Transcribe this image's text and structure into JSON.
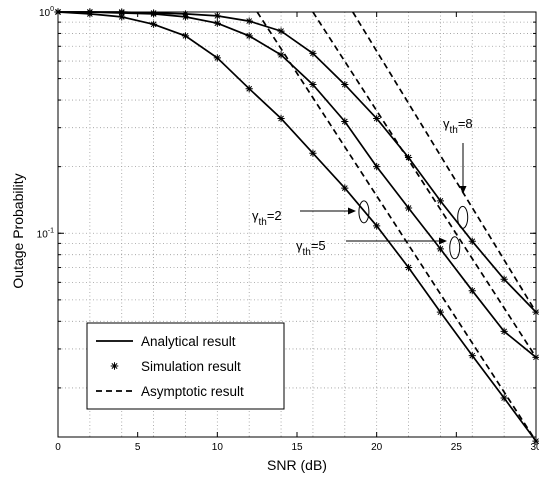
{
  "chart_data": {
    "type": "line",
    "title": "",
    "xlabel": "SNR (dB)",
    "ylabel": "Outage Probability",
    "xlim": [
      0,
      30
    ],
    "ylim": [
      0.012,
      1
    ],
    "yscale": "log",
    "grid": true,
    "legend_position": "bottom-left",
    "x_ticks": [
      0,
      5,
      10,
      15,
      20,
      25,
      30
    ],
    "y_ticks": [
      {
        "value": 1,
        "base": "10",
        "exp": "0"
      },
      {
        "value": 0.1,
        "base": "10",
        "exp": "-1"
      }
    ],
    "legend": [
      {
        "label": "Analytical result",
        "style": "solid"
      },
      {
        "label": "Simulation result",
        "style": "marker"
      },
      {
        "label": "Asymptotic result",
        "style": "dashed"
      }
    ],
    "series": [
      {
        "group": "γth=2",
        "analytical": {
          "x": [
            0,
            2,
            4,
            6,
            8,
            10,
            12,
            14,
            16,
            18,
            20,
            22,
            24,
            26,
            28,
            30
          ],
          "y": [
            1.0,
            0.98,
            0.95,
            0.88,
            0.78,
            0.62,
            0.45,
            0.33,
            0.23,
            0.16,
            0.108,
            0.07,
            0.044,
            0.028,
            0.018,
            0.0115
          ]
        },
        "simulation": {
          "x": [
            0,
            2,
            4,
            6,
            8,
            10,
            12,
            14,
            16,
            18,
            20,
            22,
            24,
            26,
            28,
            30
          ],
          "y": [
            1.0,
            0.98,
            0.95,
            0.88,
            0.78,
            0.62,
            0.45,
            0.33,
            0.23,
            0.16,
            0.108,
            0.07,
            0.044,
            0.028,
            0.018,
            0.0115
          ]
        },
        "asymptotic": {
          "x": [
            12.5,
            30
          ],
          "y": [
            1.0,
            0.0115
          ]
        }
      },
      {
        "group": "γth=5",
        "analytical": {
          "x": [
            0,
            2,
            4,
            6,
            8,
            10,
            12,
            14,
            16,
            18,
            20,
            22,
            24,
            26,
            28,
            30
          ],
          "y": [
            1.0,
            1.0,
            0.99,
            0.98,
            0.95,
            0.89,
            0.78,
            0.64,
            0.47,
            0.32,
            0.2,
            0.13,
            0.085,
            0.055,
            0.036,
            0.0275
          ]
        },
        "simulation": {
          "x": [
            0,
            2,
            4,
            6,
            8,
            10,
            12,
            14,
            16,
            18,
            20,
            22,
            24,
            26,
            28,
            30
          ],
          "y": [
            1.0,
            1.0,
            0.99,
            0.98,
            0.95,
            0.89,
            0.78,
            0.64,
            0.47,
            0.32,
            0.2,
            0.13,
            0.085,
            0.055,
            0.036,
            0.0275
          ]
        },
        "asymptotic": {
          "x": [
            16,
            30
          ],
          "y": [
            1.0,
            0.0275
          ]
        }
      },
      {
        "group": "γth=8",
        "analytical": {
          "x": [
            0,
            2,
            4,
            6,
            8,
            10,
            12,
            14,
            16,
            18,
            20,
            22,
            24,
            26,
            28,
            30
          ],
          "y": [
            1.0,
            1.0,
            1.0,
            0.99,
            0.98,
            0.96,
            0.91,
            0.82,
            0.65,
            0.47,
            0.33,
            0.22,
            0.14,
            0.092,
            0.062,
            0.044
          ]
        },
        "simulation": {
          "x": [
            0,
            2,
            4,
            6,
            8,
            10,
            12,
            14,
            16,
            18,
            20,
            22,
            24,
            26,
            28,
            30
          ],
          "y": [
            1.0,
            1.0,
            1.0,
            0.99,
            0.98,
            0.96,
            0.91,
            0.82,
            0.65,
            0.47,
            0.33,
            0.22,
            0.14,
            0.092,
            0.062,
            0.044
          ]
        },
        "asymptotic": {
          "x": [
            18.5,
            30
          ],
          "y": [
            1.0,
            0.044
          ]
        }
      }
    ],
    "annotations": [
      {
        "symbol": "γ",
        "sub": "th",
        "value": "=2",
        "target_x": 19.2,
        "target_y": 0.125
      },
      {
        "symbol": "γ",
        "sub": "th",
        "value": "=5",
        "target_x": 24.9,
        "target_y": 0.086
      },
      {
        "symbol": "γ",
        "sub": "th",
        "value": "=8",
        "target_x": 25.4,
        "target_y": 0.118
      }
    ]
  }
}
